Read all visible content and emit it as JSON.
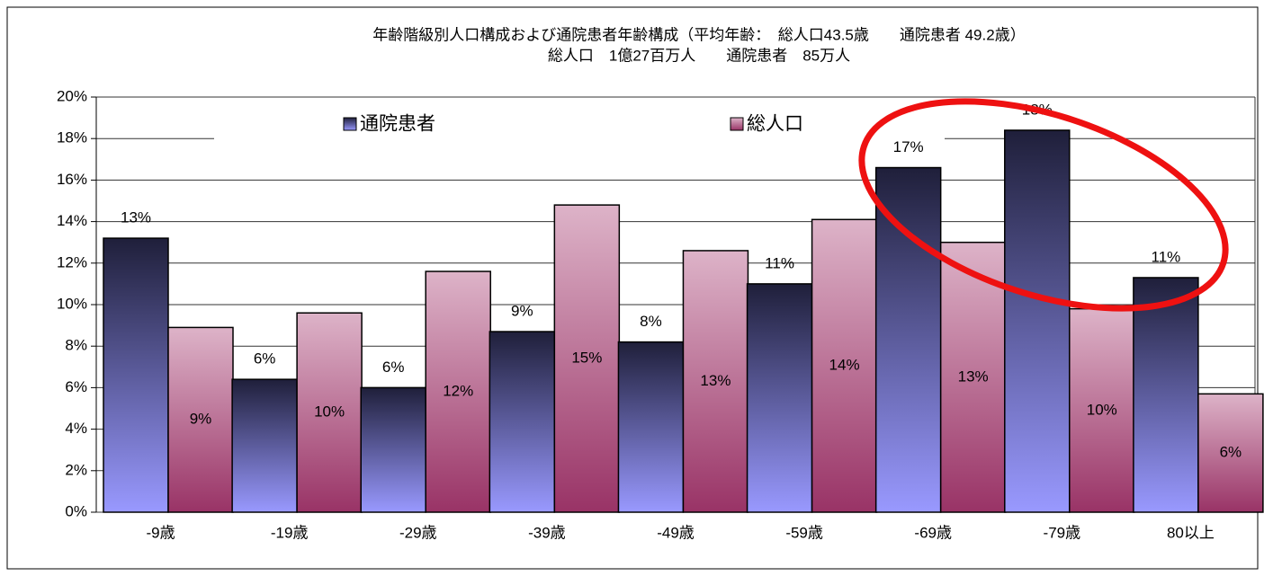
{
  "chart_data": {
    "type": "bar",
    "title": "年齢階級別人口構成および通院患者年齢構成（平均年齢：　総人口43.5歳　　通院患者 49.2歳）",
    "subtitle": "総人口　1億27百万人　　通院患者　85万人",
    "categories": [
      "-9歳",
      "-19歳",
      "-29歳",
      "-39歳",
      "-49歳",
      "-59歳",
      "-69歳",
      "-79歳",
      "80以上"
    ],
    "series": [
      {
        "name": "通院患者",
        "color": "#9999ff",
        "values": [
          13.2,
          6.4,
          6.0,
          8.7,
          8.2,
          11.0,
          16.6,
          18.4,
          11.3
        ],
        "value_labels": [
          "13%",
          "6%",
          "6%",
          "9%",
          "8%",
          "11%",
          "17%",
          "18%",
          "11%"
        ]
      },
      {
        "name": "総人口",
        "color": "#993366",
        "values": [
          8.9,
          9.6,
          11.6,
          14.8,
          12.6,
          14.1,
          13.0,
          9.8,
          5.7
        ],
        "value_labels": [
          "9%",
          "10%",
          "12%",
          "15%",
          "13%",
          "14%",
          "13%",
          "10%",
          "6%"
        ]
      }
    ],
    "ylim": [
      0,
      20
    ],
    "yticks": [
      {
        "value": 0,
        "label": "0%"
      },
      {
        "value": 2,
        "label": "2%"
      },
      {
        "value": 4,
        "label": "4%"
      },
      {
        "value": 6,
        "label": "6%"
      },
      {
        "value": 8,
        "label": "8%"
      },
      {
        "value": 10,
        "label": "10%"
      },
      {
        "value": 12,
        "label": "12%"
      },
      {
        "value": 14,
        "label": "14%"
      },
      {
        "value": 16,
        "label": "16%"
      },
      {
        "value": 18,
        "label": "18%"
      },
      {
        "value": 20,
        "label": "20%"
      }
    ],
    "grid": true
  }
}
